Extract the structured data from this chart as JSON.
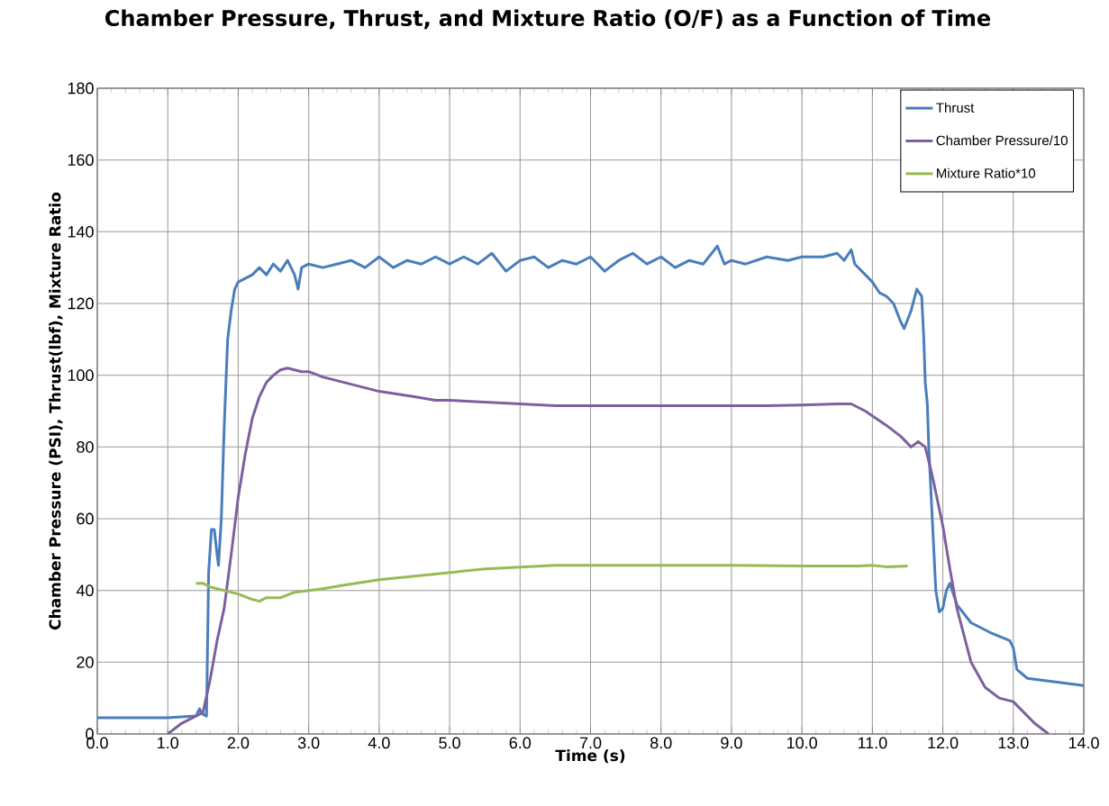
{
  "chart_data": {
    "type": "line",
    "title": "Chamber Pressure, Thrust, and Mixture Ratio (O/F) as a Function of Time",
    "xlabel": "Time (s)",
    "ylabel": "Chamber Pressure (PSI), Thrust(lbf), Mixture Ratio",
    "xlim": [
      0,
      14
    ],
    "ylim": [
      0,
      180
    ],
    "xticks": [
      {
        "value": 0,
        "label": "0.0"
      },
      {
        "value": 1,
        "label": "1.0"
      },
      {
        "value": 2,
        "label": "2.0"
      },
      {
        "value": 3,
        "label": "3.0"
      },
      {
        "value": 4,
        "label": "4.0"
      },
      {
        "value": 5,
        "label": "5.0"
      },
      {
        "value": 6,
        "label": "6.0"
      },
      {
        "value": 7,
        "label": "7.0"
      },
      {
        "value": 8,
        "label": "8.0"
      },
      {
        "value": 9,
        "label": "9.0"
      },
      {
        "value": 10,
        "label": "10.0"
      },
      {
        "value": 11,
        "label": "11.0"
      },
      {
        "value": 12,
        "label": "12.0"
      },
      {
        "value": 13,
        "label": "13.0"
      },
      {
        "value": 14,
        "label": "14.0"
      }
    ],
    "yticks": [
      0,
      20,
      40,
      60,
      80,
      100,
      120,
      140,
      160,
      180
    ],
    "grid": true,
    "legend": "top right",
    "marker": "none",
    "line_style": "solid",
    "series": [
      {
        "name": "Thrust",
        "color": "#4a7ebb",
        "x": [
          0,
          1.0,
          1.4,
          1.45,
          1.5,
          1.55,
          1.58,
          1.62,
          1.66,
          1.7,
          1.72,
          1.76,
          1.8,
          1.85,
          1.9,
          1.95,
          2.0,
          2.1,
          2.2,
          2.3,
          2.4,
          2.5,
          2.6,
          2.7,
          2.8,
          2.85,
          2.9,
          3.0,
          3.2,
          3.4,
          3.6,
          3.8,
          4.0,
          4.2,
          4.4,
          4.6,
          4.8,
          5.0,
          5.2,
          5.4,
          5.6,
          5.8,
          6.0,
          6.2,
          6.4,
          6.6,
          6.8,
          7.0,
          7.2,
          7.4,
          7.6,
          7.8,
          8.0,
          8.2,
          8.4,
          8.6,
          8.8,
          8.9,
          9.0,
          9.2,
          9.5,
          9.8,
          10.0,
          10.3,
          10.5,
          10.6,
          10.7,
          10.75,
          10.9,
          11.0,
          11.1,
          11.2,
          11.3,
          11.4,
          11.45,
          11.55,
          11.63,
          11.7,
          11.73,
          11.75,
          11.78,
          11.8,
          11.85,
          11.9,
          11.95,
          12.0,
          12.05,
          12.1,
          12.2,
          12.4,
          12.7,
          12.95,
          13.0,
          13.05,
          13.2,
          14.0
        ],
        "values": [
          4.5,
          4.5,
          5,
          7,
          5.5,
          5,
          45,
          57,
          57,
          50,
          47,
          60,
          85,
          110,
          118,
          124,
          126,
          127,
          128,
          130,
          128,
          131,
          129,
          132,
          128,
          124,
          130,
          131,
          130,
          131,
          132,
          130,
          133,
          130,
          132,
          131,
          133,
          131,
          133,
          131,
          134,
          129,
          132,
          133,
          130,
          132,
          131,
          133,
          129,
          132,
          134,
          131,
          133,
          130,
          132,
          131,
          136,
          131,
          132,
          131,
          133,
          132,
          133,
          133,
          134,
          132,
          135,
          131,
          128,
          126,
          123,
          122,
          120,
          115,
          113,
          118,
          124,
          122,
          110,
          98,
          92,
          80,
          60,
          40,
          34,
          35,
          40,
          42,
          36,
          31,
          28,
          26,
          24,
          18,
          15.5,
          13.5
        ]
      },
      {
        "name": "Chamber Pressure/10",
        "color": "#7d60a0",
        "x": [
          1.0,
          1.2,
          1.4,
          1.5,
          1.6,
          1.7,
          1.8,
          1.9,
          2.0,
          2.1,
          2.2,
          2.3,
          2.4,
          2.5,
          2.6,
          2.7,
          2.8,
          2.9,
          3.0,
          3.2,
          3.5,
          4.0,
          4.5,
          4.8,
          5.0,
          5.5,
          6.0,
          6.5,
          7.0,
          7.5,
          8.0,
          8.5,
          9.0,
          9.5,
          10.0,
          10.5,
          10.7,
          10.9,
          11.2,
          11.4,
          11.55,
          11.65,
          11.75,
          11.85,
          12.0,
          12.1,
          12.2,
          12.4,
          12.6,
          12.8,
          13.0,
          13.1,
          13.3,
          13.5
        ],
        "values": [
          0,
          3,
          5,
          6,
          15,
          26,
          35,
          50,
          66,
          78,
          88,
          94,
          98,
          100,
          101.5,
          102,
          101.5,
          101,
          101,
          99.5,
          98,
          95.5,
          94,
          93,
          93,
          92.5,
          92,
          91.5,
          91.5,
          91.5,
          91.5,
          91.5,
          91.5,
          91.5,
          91.7,
          92,
          92,
          90,
          86,
          83,
          80,
          81.5,
          80,
          72,
          58,
          46,
          35,
          20,
          13,
          10,
          9,
          7,
          3,
          0
        ]
      },
      {
        "name": "Mixture Ratio*10",
        "color": "#98b954",
        "x": [
          1.4,
          1.5,
          1.6,
          1.8,
          2.0,
          2.2,
          2.3,
          2.4,
          2.6,
          2.8,
          3.0,
          3.2,
          3.5,
          4.0,
          4.5,
          5.0,
          5.5,
          6.0,
          6.5,
          7.0,
          8.0,
          9.0,
          10.0,
          10.8,
          11.0,
          11.2,
          11.5
        ],
        "values": [
          42,
          42,
          41,
          40,
          39,
          37.5,
          37,
          38,
          38,
          39.5,
          40,
          40.5,
          41.5,
          43,
          44,
          45,
          46,
          46.5,
          47,
          47,
          47,
          47,
          46.8,
          46.8,
          47,
          46.6,
          46.8
        ]
      }
    ]
  }
}
